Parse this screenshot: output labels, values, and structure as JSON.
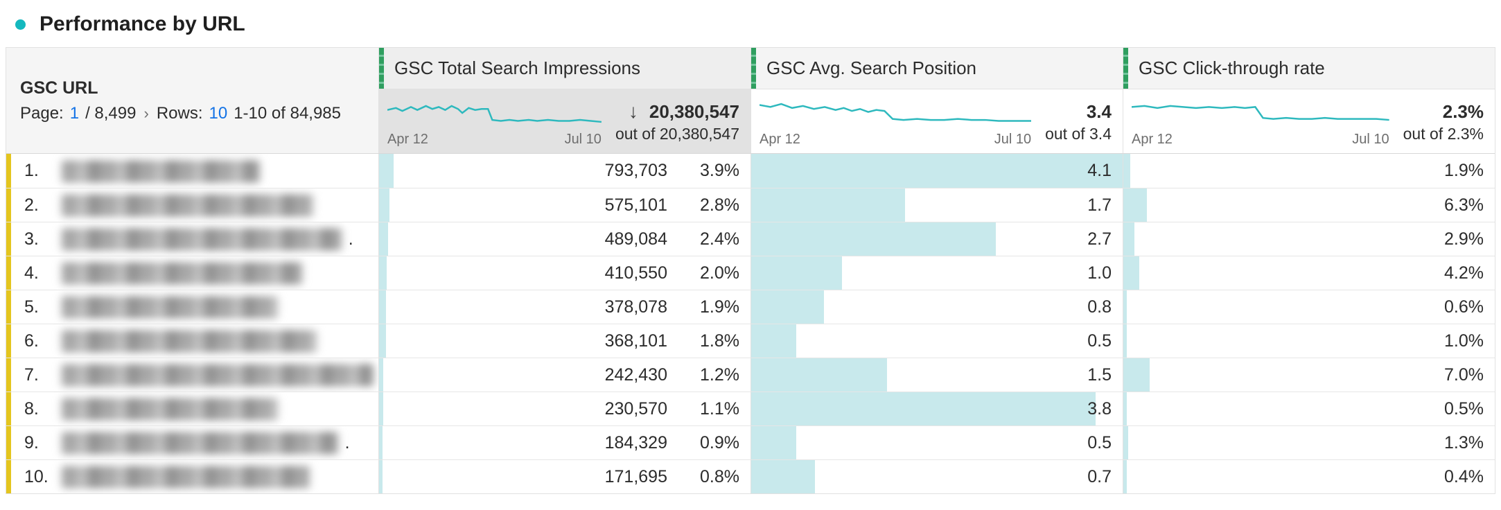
{
  "colors": {
    "accent_teal": "#14b8be",
    "sparkline_teal": "#2eb9be",
    "bar_fill_teal": "#c8e9ec",
    "metric_header_green": "#2f9e5f",
    "row_marker_yellow": "#e4c51e",
    "link_blue": "#1473e6"
  },
  "title": {
    "text": "Performance by URL"
  },
  "table": {
    "url_header": {
      "label": "GSC URL",
      "pagination": {
        "page_label": "Page:",
        "page_value": "1",
        "page_total": "/ 8,499",
        "chevron": "›",
        "rows_label": "Rows:",
        "rows_value": "10",
        "range": "1-10 of 84,985"
      }
    },
    "columns": [
      {
        "label": "GSC Total Search Impressions",
        "date_start": "Apr 12",
        "date_end": "Jul 10",
        "sort_icon": "↓",
        "total": "20,380,547",
        "out_of": "out of 20,380,547",
        "sorted": true,
        "sparkline": [
          [
            0,
            13
          ],
          [
            4,
            11
          ],
          [
            7,
            14
          ],
          [
            11,
            10
          ],
          [
            14,
            13
          ],
          [
            18,
            9
          ],
          [
            21,
            12
          ],
          [
            24,
            10
          ],
          [
            27,
            13
          ],
          [
            30,
            9
          ],
          [
            33,
            12
          ],
          [
            35,
            16
          ],
          [
            38,
            11
          ],
          [
            41,
            13
          ],
          [
            44,
            12
          ],
          [
            47,
            12
          ],
          [
            49,
            23
          ],
          [
            53,
            24
          ],
          [
            57,
            23
          ],
          [
            61,
            24
          ],
          [
            66,
            23
          ],
          [
            70,
            24
          ],
          [
            75,
            23
          ],
          [
            80,
            24
          ],
          [
            85,
            24
          ],
          [
            90,
            23
          ],
          [
            95,
            24
          ],
          [
            100,
            25
          ]
        ]
      },
      {
        "label": "GSC Avg. Search Position",
        "date_start": "Apr 12",
        "date_end": "Jul 10",
        "total": "3.4",
        "out_of": "out of 3.4",
        "sorted": false,
        "sparkline": [
          [
            0,
            8
          ],
          [
            4,
            10
          ],
          [
            8,
            7
          ],
          [
            12,
            11
          ],
          [
            16,
            9
          ],
          [
            20,
            12
          ],
          [
            24,
            10
          ],
          [
            28,
            13
          ],
          [
            31,
            11
          ],
          [
            34,
            14
          ],
          [
            37,
            12
          ],
          [
            40,
            15
          ],
          [
            43,
            13
          ],
          [
            46,
            14
          ],
          [
            49,
            22
          ],
          [
            53,
            23
          ],
          [
            58,
            22
          ],
          [
            63,
            23
          ],
          [
            68,
            23
          ],
          [
            73,
            22
          ],
          [
            78,
            23
          ],
          [
            83,
            23
          ],
          [
            88,
            24
          ],
          [
            94,
            24
          ],
          [
            100,
            24
          ]
        ]
      },
      {
        "label": "GSC Click-through rate",
        "date_start": "Apr 12",
        "date_end": "Jul 10",
        "total": "2.3%",
        "out_of": "out of 2.3%",
        "sorted": false,
        "sparkline": [
          [
            0,
            10
          ],
          [
            5,
            9
          ],
          [
            10,
            11
          ],
          [
            15,
            9
          ],
          [
            20,
            10
          ],
          [
            25,
            11
          ],
          [
            30,
            10
          ],
          [
            35,
            11
          ],
          [
            40,
            10
          ],
          [
            44,
            11
          ],
          [
            48,
            10
          ],
          [
            51,
            21
          ],
          [
            55,
            22
          ],
          [
            60,
            21
          ],
          [
            65,
            22
          ],
          [
            70,
            22
          ],
          [
            75,
            21
          ],
          [
            80,
            22
          ],
          [
            85,
            22
          ],
          [
            90,
            22
          ],
          [
            95,
            22
          ],
          [
            100,
            23
          ]
        ]
      }
    ],
    "rows": [
      {
        "num": "1.",
        "url_redacted": true,
        "url_blur_pct": 56,
        "url_suffix": "",
        "impressions": "793,703",
        "impressions_pct": "3.9%",
        "imp_bar_pct": 3.9,
        "position": "4.1",
        "pos_bar_pct": 100,
        "ctr": "1.9%",
        "ctr_bar_pct": 1.9
      },
      {
        "num": "2.",
        "url_redacted": true,
        "url_blur_pct": 71,
        "url_suffix": "",
        "impressions": "575,101",
        "impressions_pct": "2.8%",
        "imp_bar_pct": 2.8,
        "position": "1.7",
        "pos_bar_pct": 41.5,
        "ctr": "6.3%",
        "ctr_bar_pct": 6.3
      },
      {
        "num": "3.",
        "url_redacted": true,
        "url_blur_pct": 79,
        "url_suffix": ".",
        "impressions": "489,084",
        "impressions_pct": "2.4%",
        "imp_bar_pct": 2.4,
        "position": "2.7",
        "pos_bar_pct": 65.9,
        "ctr": "2.9%",
        "ctr_bar_pct": 2.9
      },
      {
        "num": "4.",
        "url_redacted": true,
        "url_blur_pct": 68,
        "url_suffix": "",
        "impressions": "410,550",
        "impressions_pct": "2.0%",
        "imp_bar_pct": 2.0,
        "position": "1.0",
        "pos_bar_pct": 24.4,
        "ctr": "4.2%",
        "ctr_bar_pct": 4.2
      },
      {
        "num": "5.",
        "url_redacted": true,
        "url_blur_pct": 61,
        "url_suffix": "",
        "impressions": "378,078",
        "impressions_pct": "1.9%",
        "imp_bar_pct": 1.9,
        "position": "0.8",
        "pos_bar_pct": 19.5,
        "ctr": "0.6%",
        "ctr_bar_pct": 0.6
      },
      {
        "num": "6.",
        "url_redacted": true,
        "url_blur_pct": 72,
        "url_suffix": "",
        "impressions": "368,101",
        "impressions_pct": "1.8%",
        "imp_bar_pct": 1.8,
        "position": "0.5",
        "pos_bar_pct": 12.2,
        "ctr": "1.0%",
        "ctr_bar_pct": 1.0
      },
      {
        "num": "7.",
        "url_redacted": true,
        "url_blur_pct": 88,
        "url_suffix": "",
        "impressions": "242,430",
        "impressions_pct": "1.2%",
        "imp_bar_pct": 1.2,
        "position": "1.5",
        "pos_bar_pct": 36.6,
        "ctr": "7.0%",
        "ctr_bar_pct": 7.0
      },
      {
        "num": "8.",
        "url_redacted": true,
        "url_blur_pct": 61,
        "url_suffix": "",
        "impressions": "230,570",
        "impressions_pct": "1.1%",
        "imp_bar_pct": 1.1,
        "position": "3.8",
        "pos_bar_pct": 92.7,
        "ctr": "0.5%",
        "ctr_bar_pct": 0.5
      },
      {
        "num": "9.",
        "url_redacted": true,
        "url_blur_pct": 78,
        "url_suffix": ".",
        "impressions": "184,329",
        "impressions_pct": "0.9%",
        "imp_bar_pct": 0.9,
        "position": "0.5",
        "pos_bar_pct": 12.2,
        "ctr": "1.3%",
        "ctr_bar_pct": 1.3
      },
      {
        "num": "10.",
        "url_redacted": true,
        "url_blur_pct": 70,
        "url_suffix": "",
        "impressions": "171,695",
        "impressions_pct": "0.8%",
        "imp_bar_pct": 0.8,
        "position": "0.7",
        "pos_bar_pct": 17.1,
        "ctr": "0.4%",
        "ctr_bar_pct": 0.4
      }
    ]
  }
}
